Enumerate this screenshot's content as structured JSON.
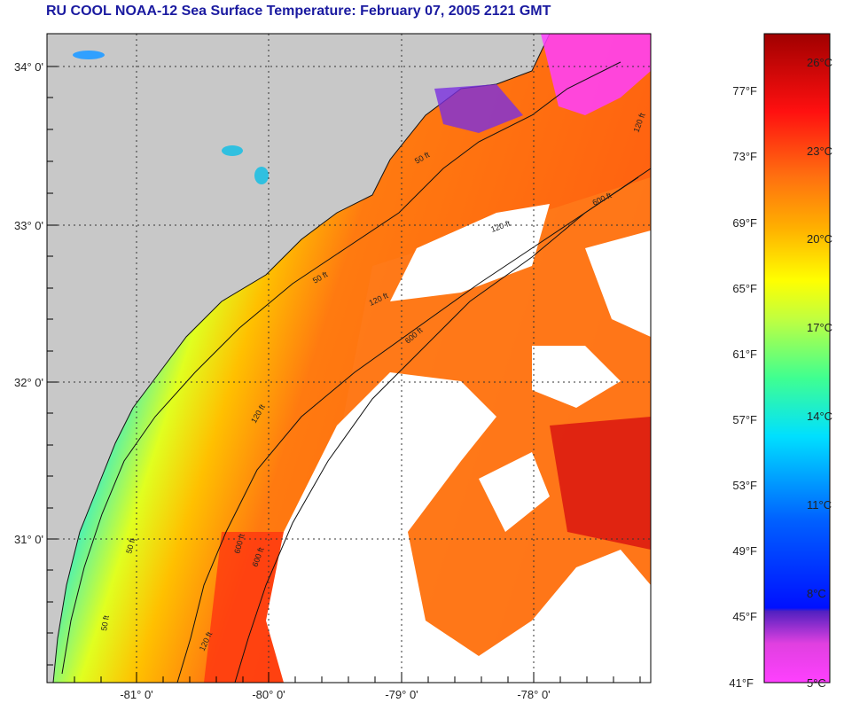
{
  "title": "RU COOL  NOAA-12  Sea Surface Temperature:  February 07, 2005 2121 GMT",
  "lat_labels": [
    "34° 0'",
    "33° 0'",
    "32° 0'",
    "31° 0'"
  ],
  "lon_labels": [
    "-81° 0'",
    "-80° 0'",
    "-79° 0'",
    "-78° 0'"
  ],
  "contour_labels": [
    "50 ft",
    "120 ft",
    "600 ft",
    "50 ft",
    "120 ft",
    "600 ft",
    "120 ft",
    "600 ft",
    "50 ft",
    "120 ft",
    "600 ft",
    "50 ft",
    "120 ft"
  ],
  "colorbar": {
    "fahrenheit": [
      "77°F",
      "73°F",
      "69°F",
      "65°F",
      "61°F",
      "57°F",
      "53°F",
      "49°F",
      "45°F",
      "41°F"
    ],
    "celsius": [
      "26°C",
      "23°C",
      "20°C",
      "17°C",
      "14°C",
      "11°C",
      "8°C",
      "5°C"
    ]
  },
  "colors": {
    "land": "#c8c8c8",
    "cloud": "#ffffff",
    "title": "#1a1aa0"
  }
}
